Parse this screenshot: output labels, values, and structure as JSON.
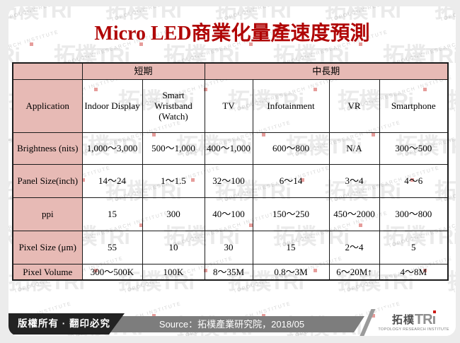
{
  "title": "Micro LED商業化量產速度預測",
  "chart_data": {
    "type": "table",
    "title": "Micro LED商業化量產速度預測",
    "group_headers": [
      {
        "label": "",
        "span": 1
      },
      {
        "label": "短期",
        "span": 2
      },
      {
        "label": "中長期",
        "span": 4
      }
    ],
    "columns": [
      "Application",
      "Indoor Display",
      "Smart Wristband (Watch)",
      "TV",
      "Infotainment",
      "VR",
      "Smartphone"
    ],
    "rows": [
      {
        "label": "Brightness (nits)",
        "values": [
          "1,000～3,000",
          "500～1,000",
          "400～1,000",
          "600～800",
          "N/A",
          "300～500"
        ]
      },
      {
        "label": "Panel Size(inch)",
        "values": [
          "14～24",
          "1～1.5",
          "32～100",
          "6～14",
          "3～4",
          "4～6"
        ]
      },
      {
        "label": "ppi",
        "values": [
          "15",
          "300",
          "40～100",
          "150～250",
          "450～2000",
          "300～800"
        ]
      },
      {
        "label": "Pixel Size (μm)",
        "values": [
          "55",
          "10",
          "30",
          "15",
          "2～4",
          "5"
        ]
      },
      {
        "label": "Pixel Volume",
        "values": [
          "300～500K",
          "100K",
          "8～35M",
          "0.8～3M",
          "6～20M↑",
          "4～8M"
        ]
      }
    ]
  },
  "footer": {
    "copyright": "版權所有 · 翻印必究",
    "source": "Source：拓樸產業研究院，2018/05"
  },
  "logo": {
    "cjk": "拓樸",
    "latin": "TR",
    "latin_i": "ı",
    "subtitle": "TOPOLOGY RESEARCH INSTITUTE"
  },
  "watermark": {
    "big": "拓樸TRi",
    "small": "TOPOLOGY RESEARCH INSTITUTE"
  },
  "colors": {
    "title_red": "#b00505",
    "header_pink": "#e7bab5",
    "footer_black": "#232323",
    "footer_gray": "#7d7d7d",
    "logo_dot_red": "#cc1c17"
  }
}
